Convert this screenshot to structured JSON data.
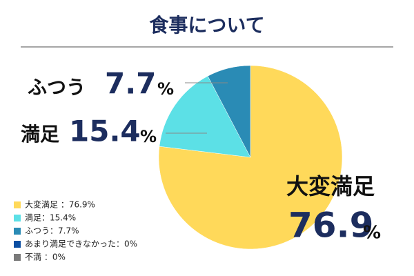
{
  "chart_data": {
    "type": "pie",
    "title": "食事について",
    "categories": [
      "大変満足",
      "満足",
      "ふつう",
      "あまり満足できなかった",
      "不満"
    ],
    "values": [
      76.9,
      15.4,
      7.7,
      0,
      0
    ],
    "colors": [
      "#FFD95A",
      "#5CE0E6",
      "#2A8BB5",
      "#0B4EA2",
      "#7A7A7A"
    ],
    "value_suffix": "%",
    "legend_labels": [
      "大変満足 ：76.9%",
      "満足：15.4%",
      "ふつう：7.7%",
      "あまり満足できなかった：0%",
      "不満 ：0%"
    ],
    "legend_position": "lower left"
  }
}
